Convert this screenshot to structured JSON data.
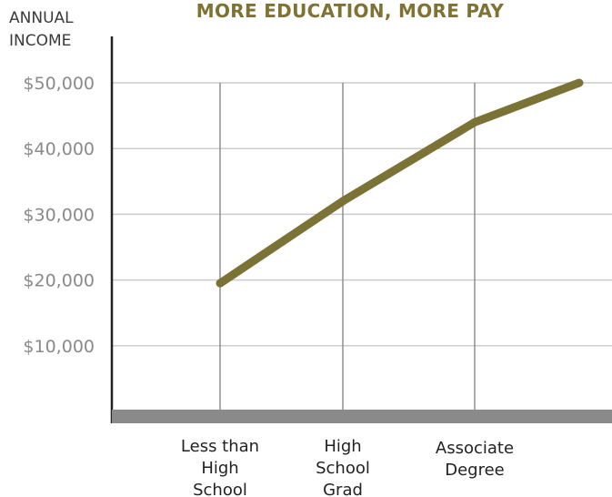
{
  "chart_data": {
    "type": "line",
    "title": "MORE EDUCATION, MORE PAY",
    "ylabel": [
      "ANNUAL",
      "INCOME"
    ],
    "xlabel": "",
    "categories": [
      [
        "Less than",
        "High",
        "School"
      ],
      [
        "High",
        "School",
        "Grad"
      ],
      [
        "Associate",
        "Degree"
      ],
      []
    ],
    "values": [
      19500,
      32000,
      44000,
      50000
    ],
    "ylim": [
      0,
      50000
    ],
    "yticks": [
      {
        "value": 50000,
        "label": "$50,000"
      },
      {
        "value": 40000,
        "label": "$40,000"
      },
      {
        "value": 30000,
        "label": "$30,000"
      },
      {
        "value": 20000,
        "label": "$20,000"
      },
      {
        "value": 10000,
        "label": "$10,000"
      }
    ],
    "grid": true,
    "colors": {
      "line": "#7b7236",
      "title": "#7f7235",
      "baseline": "#8a8a8a",
      "grid": "#cccccc",
      "vgrid": "#8f8f8f",
      "axis": "#222222"
    }
  }
}
